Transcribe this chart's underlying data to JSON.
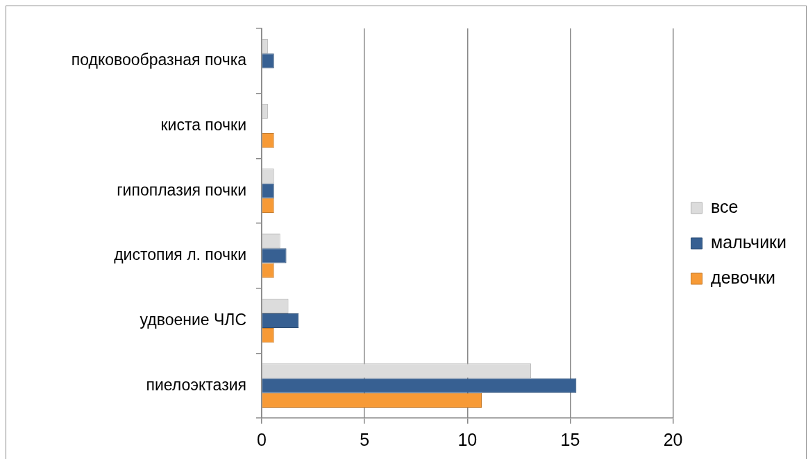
{
  "chart_data": {
    "type": "bar",
    "orientation": "horizontal",
    "categories": [
      "подковообразная почка",
      "киста почки",
      "гипоплазия почки",
      "дистопия л. почки",
      "удвоение ЧЛС",
      "пиелоэктазия"
    ],
    "series": [
      {
        "name": "все",
        "color": "#dcdcdc",
        "values": [
          0.3,
          0.3,
          0.6,
          0.9,
          1.3,
          13.1
        ]
      },
      {
        "name": "мальчики",
        "color": "#376092",
        "values": [
          0.6,
          null,
          0.6,
          1.2,
          1.8,
          15.3
        ]
      },
      {
        "name": "девочки",
        "color": "#f79a36",
        "values": [
          null,
          0.6,
          0.6,
          0.6,
          0.6,
          10.7
        ]
      }
    ],
    "xlim": [
      0,
      20
    ],
    "xticks": [
      0,
      5,
      10,
      15,
      20
    ],
    "grid": "x",
    "legend": "right"
  }
}
